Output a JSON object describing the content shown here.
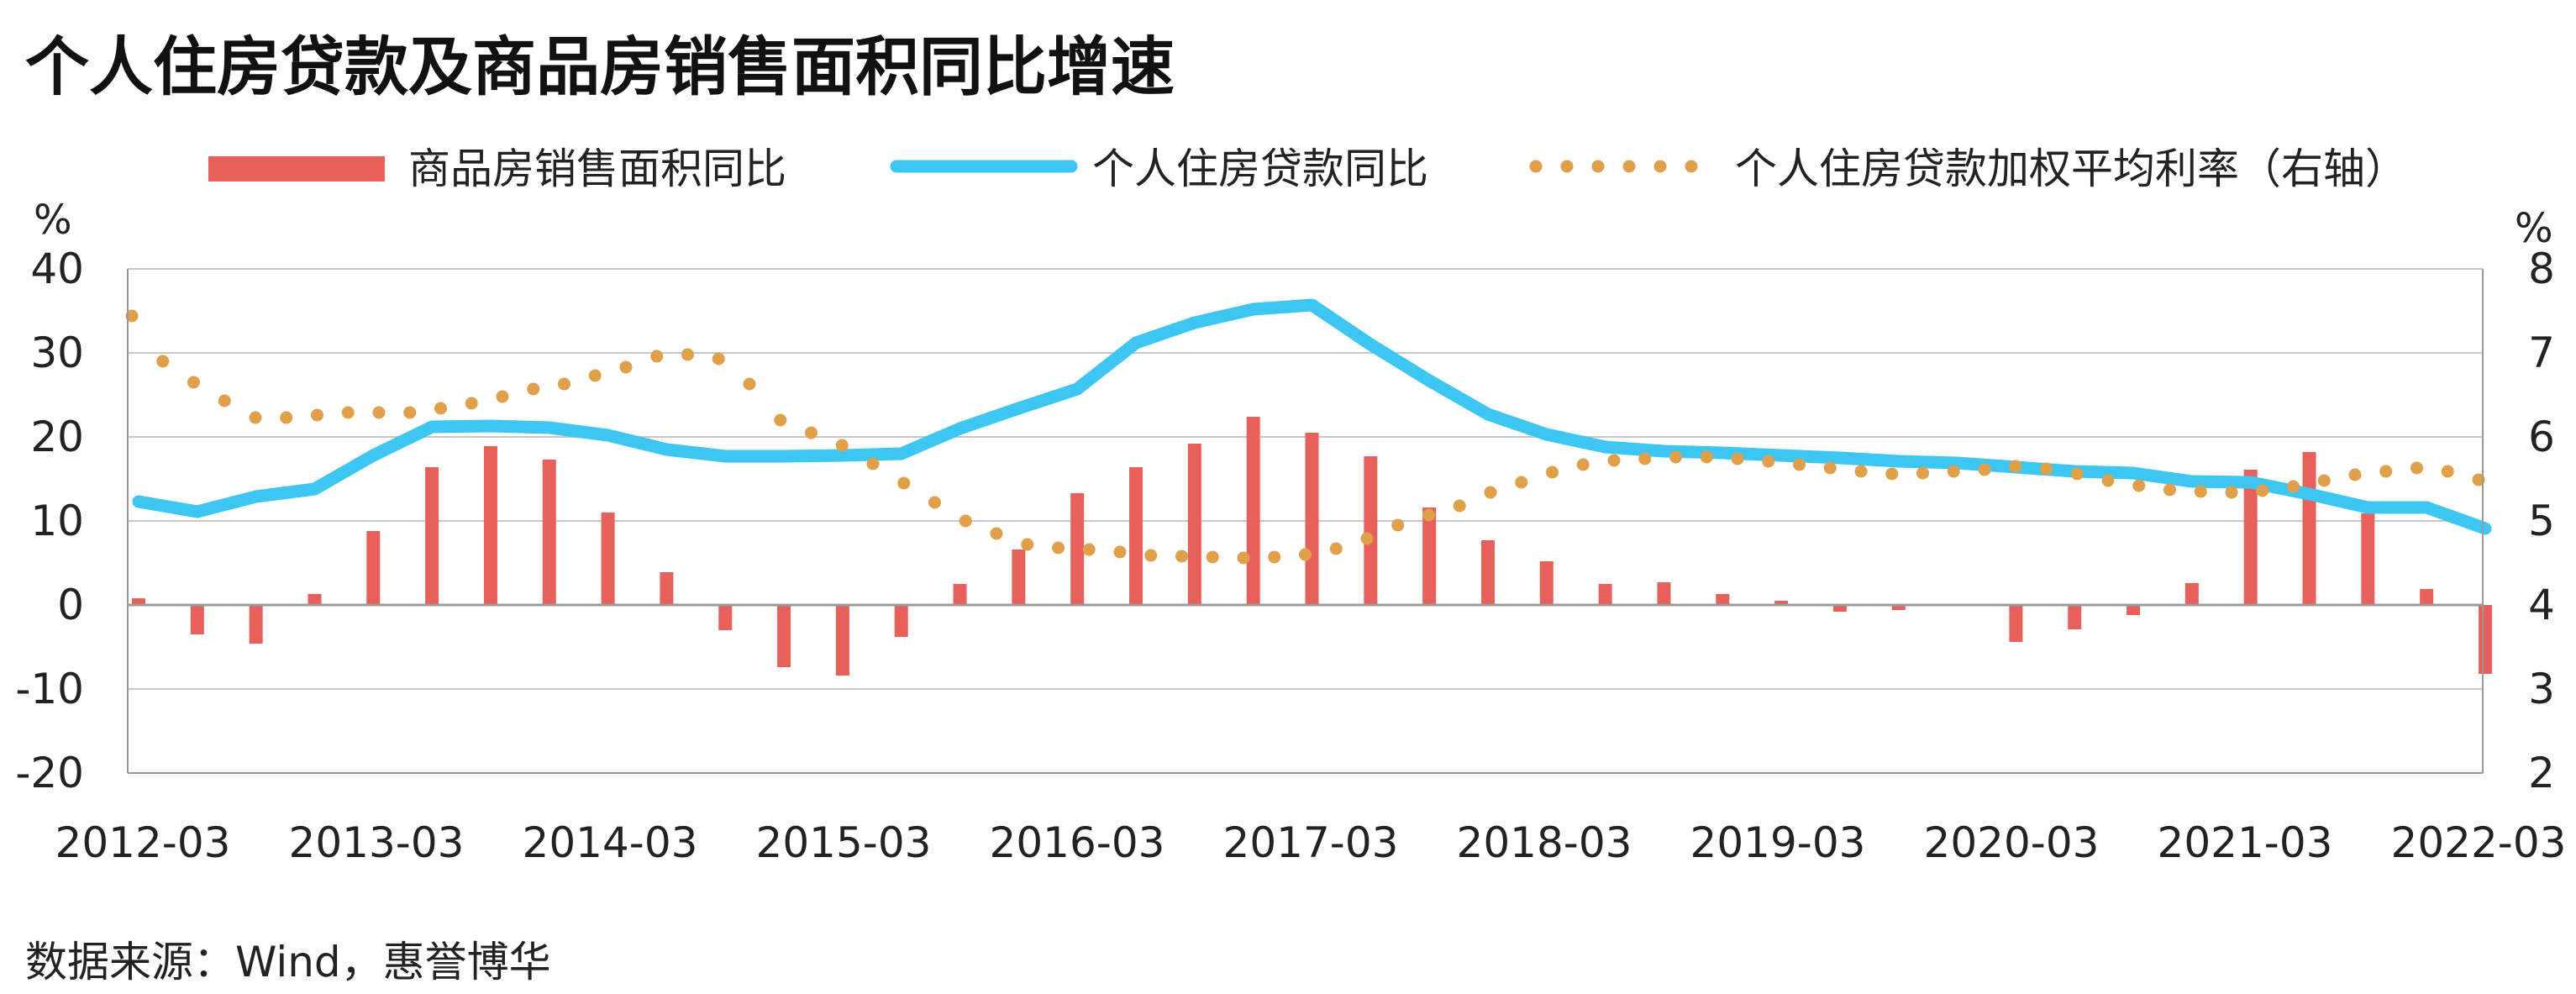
{
  "title": "个人住房贷款及商品房销售面积同比增速",
  "source": "数据来源：Wind，惠誉博华",
  "chart_data": {
    "type": "bar+line",
    "left_axis": {
      "unit": "%",
      "ylim": [
        -20,
        40
      ],
      "ticks": [
        40,
        30,
        20,
        10,
        0,
        -10,
        -20
      ]
    },
    "right_axis": {
      "unit": "%",
      "ylim": [
        2,
        8
      ],
      "ticks": [
        8,
        7,
        6,
        5,
        4,
        3,
        2
      ]
    },
    "x_tick_labels": [
      "2012-03",
      "2013-03",
      "2014-03",
      "2015-03",
      "2016-03",
      "2017-03",
      "2018-03",
      "2019-03",
      "2020-03",
      "2021-03",
      "2022-03"
    ],
    "legend": [
      "商品房销售面积同比",
      "个人住房贷款同比",
      "个人住房贷款加权平均利率（右轴）"
    ],
    "grid": true,
    "colors": {
      "bars": "#e8605a",
      "line": "#3ec6f2",
      "dots": "#e0a04a"
    },
    "series": [
      {
        "name": "商品房销售面积同比",
        "type": "bar",
        "axis": "left",
        "values": [
          0.8,
          -3.5,
          -4.6,
          1.3,
          8.8,
          16.4,
          18.9,
          17.3,
          11.0,
          3.9,
          -3.0,
          -7.4,
          -8.4,
          -3.8,
          2.5,
          6.6,
          13.3,
          16.4,
          19.2,
          22.4,
          20.5,
          17.7,
          11.6,
          7.7,
          5.2,
          2.5,
          2.7,
          1.3,
          0.5,
          -0.8,
          -0.6,
          0,
          -4.4,
          -2.9,
          -1.2,
          2.6,
          16.1,
          18.2,
          10.9,
          1.9,
          -8.2
        ]
      },
      {
        "name": "个人住房贷款同比",
        "type": "line",
        "axis": "left",
        "values": [
          12.3,
          11.1,
          12.9,
          13.8,
          17.8,
          21.2,
          21.3,
          21.1,
          20.2,
          18.5,
          17.7,
          17.7,
          17.8,
          18.0,
          21.0,
          23.4,
          25.7,
          31.2,
          33.6,
          35.2,
          35.7,
          31.0,
          26.7,
          22.7,
          20.3,
          18.8,
          18.3,
          18.1,
          17.8,
          17.5,
          17.1,
          16.9,
          16.4,
          15.9,
          15.7,
          14.7,
          14.6,
          13.2,
          11.6,
          11.6,
          9.1
        ]
      },
      {
        "name": "个人住房贷款加权平均利率（右轴）",
        "type": "dotted",
        "axis": "right",
        "values": [
          7.44,
          6.9,
          6.65,
          6.43,
          6.23,
          6.23,
          6.26,
          6.29,
          6.29,
          6.29,
          6.34,
          6.4,
          6.48,
          6.57,
          6.63,
          6.73,
          6.83,
          6.96,
          6.98,
          6.93,
          6.63,
          6.2,
          6.05,
          5.9,
          5.68,
          5.45,
          5.22,
          5.0,
          4.85,
          4.72,
          4.68,
          4.66,
          4.63,
          4.59,
          4.58,
          4.57,
          4.56,
          4.57,
          4.6,
          4.67,
          4.79,
          4.95,
          5.07,
          5.18,
          5.34,
          5.46,
          5.58,
          5.67,
          5.72,
          5.74,
          5.76,
          5.76,
          5.74,
          5.71,
          5.67,
          5.63,
          5.59,
          5.56,
          5.57,
          5.59,
          5.61,
          5.65,
          5.62,
          5.56,
          5.48,
          5.42,
          5.37,
          5.35,
          5.34,
          5.36,
          5.41,
          5.48,
          5.55,
          5.59,
          5.63,
          5.59,
          5.49
        ]
      }
    ]
  }
}
